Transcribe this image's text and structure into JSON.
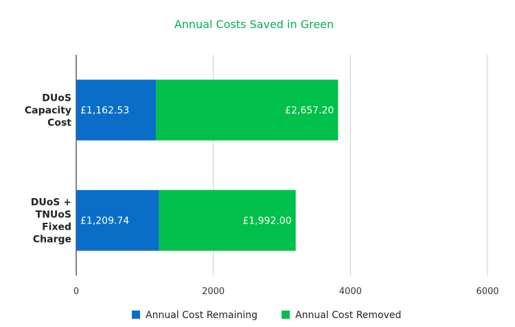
{
  "chart_data": {
    "type": "bar",
    "orientation": "horizontal",
    "stacked": true,
    "title": "Annual Costs Saved in Green",
    "categories": [
      [
        "DUoS",
        "Capacity",
        "Cost"
      ],
      [
        "DUoS +",
        "TNUoS",
        "Fixed",
        "Charge"
      ]
    ],
    "series": [
      {
        "name": "Annual Cost Remaining",
        "color": "#0a6ec8",
        "values": [
          1162.53,
          1209.74
        ],
        "labels": [
          "£1,162.53",
          "£1,209.74"
        ]
      },
      {
        "name": "Annual Cost Removed",
        "color": "#00c04b",
        "values": [
          2657.2,
          1992.0
        ],
        "labels": [
          "£2,657.20",
          "£1,992.00"
        ]
      }
    ],
    "xlim": [
      0,
      6000
    ],
    "xticks": [
      0,
      2000,
      4000,
      6000
    ],
    "grid": true,
    "legend_position": "bottom",
    "colors": {
      "title": "#00b050",
      "axis": "#333333",
      "grid": "#cccccc",
      "label_on_bar": "#ffffff"
    }
  }
}
